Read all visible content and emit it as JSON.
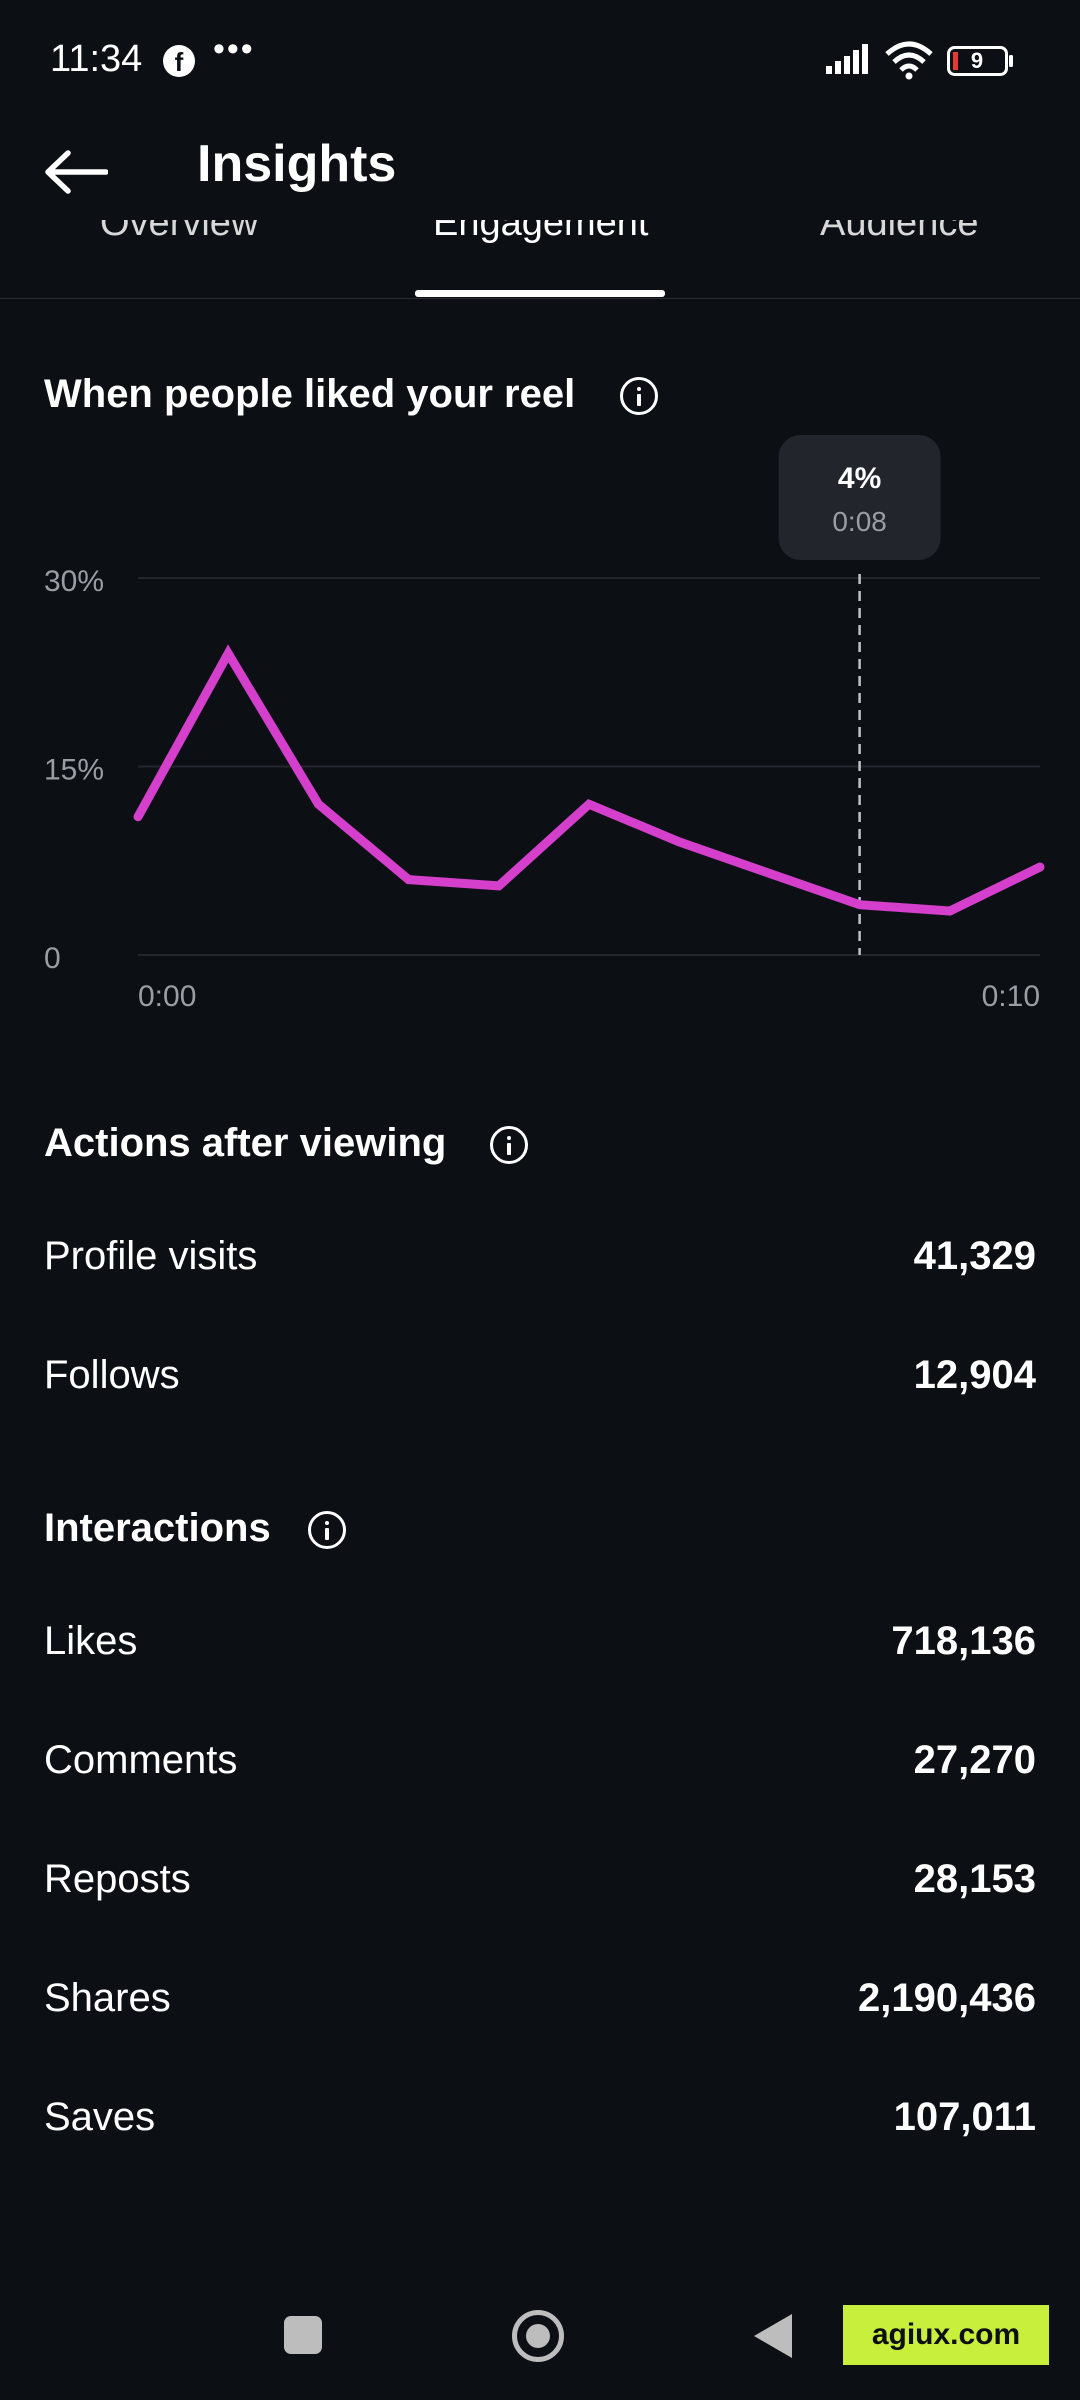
{
  "status_bar": {
    "time": "11:34",
    "battery": "9"
  },
  "app_bar": {
    "title": "Insights"
  },
  "tabs": [
    {
      "label": "Overview"
    },
    {
      "label": "Engagement"
    },
    {
      "label": "Audience"
    }
  ],
  "likes_chart": {
    "title": "When people liked your reel"
  },
  "chart_data": {
    "type": "line",
    "x": [
      "0:00",
      "0:01",
      "0:02",
      "0:03",
      "0:04",
      "0:05",
      "0:06",
      "0:07",
      "0:08",
      "0:09",
      "0:10"
    ],
    "values": [
      11,
      24,
      12,
      6,
      5.5,
      12,
      9,
      6.5,
      4,
      3.5,
      7
    ],
    "ylim": [
      0,
      30
    ],
    "yticks": [
      "0",
      "15%",
      "30%"
    ],
    "y_tick_values": [
      0,
      15,
      30
    ],
    "xtick_labels": [
      "0:00",
      "0:10"
    ],
    "tooltip": {
      "value": "4%",
      "time": "0:08",
      "index": 8
    },
    "line_color": "#d43fcb",
    "grid": true
  },
  "actions": {
    "title": "Actions after viewing",
    "rows": [
      {
        "label": "Profile visits",
        "value": "41,329"
      },
      {
        "label": "Follows",
        "value": "12,904"
      }
    ]
  },
  "interactions": {
    "title": "Interactions",
    "rows": [
      {
        "label": "Likes",
        "value": "718,136"
      },
      {
        "label": "Comments",
        "value": "27,270"
      },
      {
        "label": "Reposts",
        "value": "28,153"
      },
      {
        "label": "Shares",
        "value": "2,190,436"
      },
      {
        "label": "Saves",
        "value": "107,011"
      }
    ]
  },
  "watermark": "agiux.com",
  "colors": {
    "background": "#0c0f14",
    "accent": "#d43fcb",
    "badge": "#c8ef3c"
  }
}
